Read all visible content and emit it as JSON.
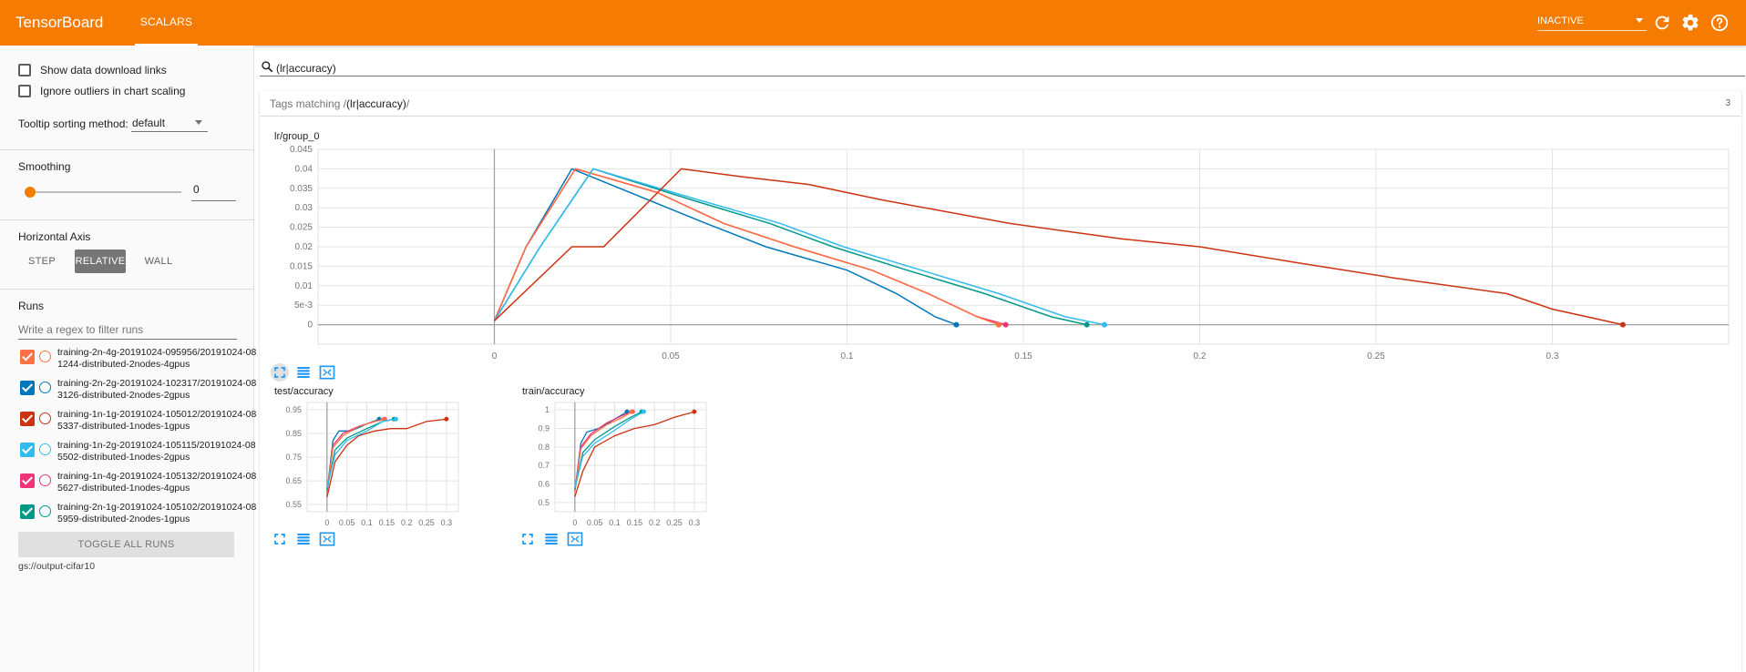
{
  "header": {
    "brand": "TensorBoard",
    "tab": "SCALARS",
    "status_select": "INACTIVE",
    "icons": [
      "refresh-icon",
      "settings-icon",
      "help-icon"
    ]
  },
  "sidebar": {
    "show_download_links": "Show data download links",
    "ignore_outliers": "Ignore outliers in chart scaling",
    "tooltip_sorting_label": "Tooltip sorting method:",
    "tooltip_sorting_value": "default",
    "smoothing_label": "Smoothing",
    "smoothing_value": "0",
    "horizontal_axis_label": "Horizontal Axis",
    "axis_buttons": [
      "STEP",
      "RELATIVE",
      "WALL"
    ],
    "axis_selected": "RELATIVE",
    "runs_label": "Runs",
    "runs_filter_placeholder": "Write a regex to filter runs",
    "runs": [
      {
        "label": "training-2n-4g-20191024-095956/20191024-081244-distributed-2nodes-4gpus",
        "color": "#ff7043"
      },
      {
        "label": "training-2n-2g-20191024-102317/20191024-083126-distributed-2nodes-2gpus",
        "color": "#0077bb"
      },
      {
        "label": "training-1n-1g-20191024-105012/20191024-085337-distributed-1nodes-1gpus",
        "color": "#cc3311"
      },
      {
        "label": "training-1n-2g-20191024-105115/20191024-085502-distributed-1nodes-2gpus",
        "color": "#33bbee"
      },
      {
        "label": "training-1n-4g-20191024-105132/20191024-085627-distributed-1nodes-4gpus",
        "color": "#ee3377"
      },
      {
        "label": "training-2n-1g-20191024-105102/20191024-085959-distributed-2nodes-1gpus",
        "color": "#009988"
      }
    ],
    "toggle_all": "TOGGLE ALL RUNS",
    "data_location": "gs://output-cifar10"
  },
  "main": {
    "search_value": "(lr|accuracy)",
    "tags_prefix": "Tags matching /",
    "tags_regex": "(lr|accuracy)",
    "tags_suffix": "/",
    "tags_count": "3"
  },
  "chart_data": [
    {
      "type": "line",
      "title": "lr/group_0",
      "xlim": [
        -0.05,
        0.35
      ],
      "ylim": [
        -0.005,
        0.045
      ],
      "xticks": [
        "0",
        "0.05",
        "0.1",
        "0.15",
        "0.2",
        "0.25",
        "0.3"
      ],
      "yticks": [
        "0",
        "5e-3",
        "0.01",
        "0.015",
        "0.02",
        "0.025",
        "0.03",
        "0.035",
        "0.04",
        "0.045"
      ],
      "series": [
        {
          "color": "#0077bb",
          "points": [
            [
              0,
              0.001
            ],
            [
              0.009,
              0.02
            ],
            [
              0.022,
              0.04
            ],
            [
              0.06,
              0.026
            ],
            [
              0.077,
              0.02
            ],
            [
              0.1,
              0.014
            ],
            [
              0.114,
              0.008
            ],
            [
              0.125,
              0.002
            ],
            [
              0.131,
              0
            ]
          ]
        },
        {
          "color": "#ee3377",
          "points": [
            [
              0,
              0.001
            ],
            [
              0.009,
              0.02
            ],
            [
              0.023,
              0.04
            ],
            [
              0.046,
              0.034
            ],
            [
              0.065,
              0.026
            ],
            [
              0.085,
              0.02
            ],
            [
              0.107,
              0.014
            ],
            [
              0.123,
              0.008
            ],
            [
              0.137,
              0.002
            ],
            [
              0.145,
              0
            ]
          ]
        },
        {
          "color": "#ff7043",
          "points": [
            [
              0,
              0.001
            ],
            [
              0.009,
              0.02
            ],
            [
              0.023,
              0.04
            ],
            [
              0.046,
              0.034
            ],
            [
              0.065,
              0.026
            ],
            [
              0.085,
              0.02
            ],
            [
              0.107,
              0.014
            ],
            [
              0.123,
              0.008
            ],
            [
              0.137,
              0.002
            ],
            [
              0.143,
              0
            ]
          ]
        },
        {
          "color": "#009988",
          "points": [
            [
              0,
              0.001
            ],
            [
              0.013,
              0.02
            ],
            [
              0.028,
              0.04
            ],
            [
              0.056,
              0.032
            ],
            [
              0.078,
              0.026
            ],
            [
              0.096,
              0.02
            ],
            [
              0.117,
              0.014
            ],
            [
              0.139,
              0.008
            ],
            [
              0.158,
              0.002
            ],
            [
              0.168,
              0
            ]
          ]
        },
        {
          "color": "#33bbee",
          "points": [
            [
              0,
              0.001
            ],
            [
              0.013,
              0.02
            ],
            [
              0.028,
              0.04
            ],
            [
              0.058,
              0.032
            ],
            [
              0.081,
              0.026
            ],
            [
              0.099,
              0.02
            ],
            [
              0.121,
              0.014
            ],
            [
              0.143,
              0.008
            ],
            [
              0.162,
              0.002
            ],
            [
              0.173,
              0
            ]
          ]
        },
        {
          "color": "#cc3311",
          "points": [
            [
              0,
              0.001
            ],
            [
              0.022,
              0.02
            ],
            [
              0.031,
              0.02
            ],
            [
              0.053,
              0.04
            ],
            [
              0.07,
              0.038
            ],
            [
              0.089,
              0.036
            ],
            [
              0.11,
              0.032
            ],
            [
              0.146,
              0.026
            ],
            [
              0.178,
              0.022
            ],
            [
              0.2,
              0.02
            ],
            [
              0.227,
              0.016
            ],
            [
              0.255,
              0.012
            ],
            [
              0.287,
              0.008
            ],
            [
              0.3,
              0.004
            ],
            [
              0.32,
              0
            ]
          ]
        }
      ]
    },
    {
      "type": "line",
      "title": "test/accuracy",
      "xlim": [
        -0.05,
        0.33
      ],
      "ylim": [
        0.52,
        0.98
      ],
      "xticks": [
        "0",
        "0.05",
        "0.1",
        "0.15",
        "0.2",
        "0.25",
        "0.3"
      ],
      "yticks": [
        "0.55",
        "0.65",
        "0.75",
        "0.85",
        "0.95"
      ],
      "series": [
        {
          "color": "#cc3311",
          "points": [
            [
              0,
              0.58
            ],
            [
              0.02,
              0.73
            ],
            [
              0.05,
              0.8
            ],
            [
              0.08,
              0.84
            ],
            [
              0.12,
              0.86
            ],
            [
              0.16,
              0.87
            ],
            [
              0.2,
              0.87
            ],
            [
              0.25,
              0.9
            ],
            [
              0.3,
              0.91
            ]
          ]
        },
        {
          "color": "#0077bb",
          "points": [
            [
              0,
              0.6
            ],
            [
              0.015,
              0.82
            ],
            [
              0.03,
              0.86
            ],
            [
              0.06,
              0.86
            ],
            [
              0.1,
              0.89
            ],
            [
              0.131,
              0.91
            ]
          ]
        },
        {
          "color": "#ee3377",
          "points": [
            [
              0,
              0.6
            ],
            [
              0.015,
              0.8
            ],
            [
              0.04,
              0.85
            ],
            [
              0.08,
              0.88
            ],
            [
              0.12,
              0.9
            ],
            [
              0.145,
              0.91
            ]
          ]
        },
        {
          "color": "#ff7043",
          "points": [
            [
              0,
              0.6
            ],
            [
              0.015,
              0.79
            ],
            [
              0.04,
              0.84
            ],
            [
              0.08,
              0.88
            ],
            [
              0.12,
              0.9
            ],
            [
              0.143,
              0.91
            ]
          ]
        },
        {
          "color": "#009988",
          "points": [
            [
              0,
              0.61
            ],
            [
              0.02,
              0.78
            ],
            [
              0.05,
              0.83
            ],
            [
              0.1,
              0.87
            ],
            [
              0.14,
              0.9
            ],
            [
              0.168,
              0.91
            ]
          ]
        },
        {
          "color": "#33bbee",
          "points": [
            [
              0,
              0.62
            ],
            [
              0.02,
              0.76
            ],
            [
              0.05,
              0.82
            ],
            [
              0.1,
              0.86
            ],
            [
              0.14,
              0.9
            ],
            [
              0.173,
              0.91
            ]
          ]
        }
      ]
    },
    {
      "type": "line",
      "title": "train/accuracy",
      "xlim": [
        -0.05,
        0.33
      ],
      "ylim": [
        0.45,
        1.04
      ],
      "xticks": [
        "0",
        "0.05",
        "0.1",
        "0.15",
        "0.2",
        "0.25",
        "0.3"
      ],
      "yticks": [
        "0.5",
        "0.6",
        "0.7",
        "0.8",
        "0.9",
        "1"
      ],
      "series": [
        {
          "color": "#cc3311",
          "points": [
            [
              0,
              0.53
            ],
            [
              0.02,
              0.67
            ],
            [
              0.05,
              0.8
            ],
            [
              0.1,
              0.86
            ],
            [
              0.15,
              0.9
            ],
            [
              0.2,
              0.92
            ],
            [
              0.25,
              0.96
            ],
            [
              0.3,
              0.99
            ]
          ]
        },
        {
          "color": "#0077bb",
          "points": [
            [
              0,
              0.56
            ],
            [
              0.015,
              0.82
            ],
            [
              0.03,
              0.88
            ],
            [
              0.06,
              0.9
            ],
            [
              0.1,
              0.95
            ],
            [
              0.131,
              0.99
            ]
          ]
        },
        {
          "color": "#ee3377",
          "points": [
            [
              0,
              0.56
            ],
            [
              0.015,
              0.8
            ],
            [
              0.04,
              0.87
            ],
            [
              0.08,
              0.93
            ],
            [
              0.12,
              0.97
            ],
            [
              0.145,
              0.99
            ]
          ]
        },
        {
          "color": "#ff7043",
          "points": [
            [
              0,
              0.56
            ],
            [
              0.015,
              0.79
            ],
            [
              0.04,
              0.86
            ],
            [
              0.08,
              0.92
            ],
            [
              0.12,
              0.96
            ],
            [
              0.143,
              0.99
            ]
          ]
        },
        {
          "color": "#009988",
          "points": [
            [
              0,
              0.57
            ],
            [
              0.02,
              0.77
            ],
            [
              0.05,
              0.84
            ],
            [
              0.1,
              0.91
            ],
            [
              0.14,
              0.96
            ],
            [
              0.168,
              0.99
            ]
          ]
        },
        {
          "color": "#33bbee",
          "points": [
            [
              0,
              0.58
            ],
            [
              0.02,
              0.75
            ],
            [
              0.05,
              0.82
            ],
            [
              0.1,
              0.89
            ],
            [
              0.14,
              0.95
            ],
            [
              0.173,
              0.99
            ]
          ]
        }
      ]
    }
  ]
}
